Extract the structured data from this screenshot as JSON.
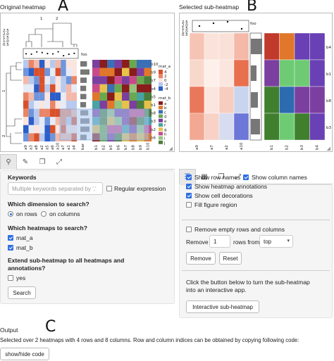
{
  "panel_letters": {
    "a": "A",
    "b": "B",
    "c": "C"
  },
  "original": {
    "title": "Original heatmap",
    "foo_label": "foo",
    "bar_label": "bar",
    "row_labels": [
      "b10",
      "b9",
      "b7",
      "b4",
      "b5",
      "b1",
      "b8",
      "b3",
      "b2",
      "b6"
    ],
    "col_labels": [
      "a9",
      "a3",
      "a8",
      "a2",
      "a5",
      "a6",
      "a10",
      "a7",
      "a1",
      "a4",
      "b1",
      "b2",
      "b5",
      "b6",
      "b7",
      "b8",
      "b9",
      "b10"
    ],
    "cluster_labels": {
      "c1": "1",
      "c2": "2",
      "r1": "1",
      "r2": "2"
    },
    "scale_ticks": [
      "2.5",
      "2.0",
      "1.5",
      "1.0",
      "0.5"
    ],
    "legend_a_title": "mat_a",
    "legend_a_ticks": [
      "4",
      "2",
      "0",
      "-2",
      "-4"
    ],
    "legend_b_title": "mat_b",
    "legend_b_items": [
      "a",
      "b",
      "c",
      "d",
      "e",
      "f",
      "g",
      "h",
      "i",
      "j"
    ]
  },
  "selected": {
    "title": "Selected sub-heatmap",
    "foo_label": "foo",
    "scale_ticks": [
      "2.5",
      "2.0",
      "1.5",
      "1.0",
      "0.5"
    ],
    "row_labels": [
      "b4",
      "b1",
      "b8",
      "b3"
    ],
    "col_labels": [
      "a9",
      "a7",
      "a2",
      "a10",
      "b1",
      "b2",
      "b3",
      "b4"
    ]
  },
  "search_panel": {
    "keywords_label": "Keywords",
    "keywords_placeholder": "Multiple keywords separated by ','",
    "regex_label": "Regular expression",
    "dimension_label": "Which dimension to search?",
    "on_rows": "on rows",
    "on_columns": "on columns",
    "heatmaps_label": "Which heatmaps to search?",
    "mat_a": "mat_a",
    "mat_b": "mat_b",
    "extend_label_1": "Extend sub-heatmap to all heatmaps and",
    "extend_label_2": "annotations?",
    "yes_label": "yes",
    "search_button": "Search"
  },
  "settings_panel": {
    "show_row_names": "Show row names",
    "show_column_names": "Show column names",
    "show_heatmap_annotations": "Show heatmap annotations",
    "show_cell_decorations": "Show cell decorations",
    "fill_figure_region": "Fill figure region",
    "remove_empty": "Remove empty rows and columns",
    "remove_label": "Remove",
    "remove_value": "1",
    "rows_from": "rows from",
    "from_value": "top",
    "remove_button": "Remove",
    "reset_button": "Reset",
    "info_1": "Click the button below to turn the sub-heatmap",
    "info_2": "into an interactive app.",
    "interactive_button": "Interactive sub-heatmap"
  },
  "output": {
    "title": "Output",
    "text": "Selected over 2 heatmaps with 4 rows and 8 columns. Row and column indices can be obtained by copying following code:",
    "button": "show/hide code"
  },
  "colors": {
    "accent": "#2f6fe0",
    "selection": "#a9c8f0"
  }
}
